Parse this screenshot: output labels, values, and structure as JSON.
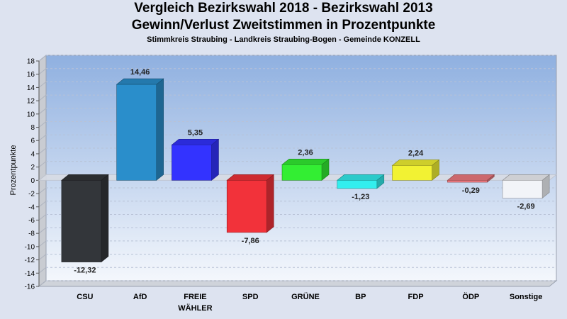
{
  "chart_data": {
    "type": "bar",
    "title_line1": "Vergleich Bezirkswahl 2018 - Bezirkswahl 2013",
    "title_line2": "Gewinn/Verlust Zweitstimmen in Prozentpunkte",
    "subtitle": "Stimmkreis Straubing - Landkreis Straubing-Bogen - Gemeinde KONZELL",
    "ylabel": "Prozentpunkte",
    "ylim": [
      -16,
      18
    ],
    "yticks": [
      18,
      16,
      14,
      12,
      10,
      8,
      6,
      4,
      2,
      0,
      -2,
      -4,
      -6,
      -8,
      -10,
      -12,
      -14,
      -16
    ],
    "categories": [
      {
        "line1": "CSU",
        "line2": ""
      },
      {
        "line1": "AfD",
        "line2": ""
      },
      {
        "line1": "FREIE",
        "line2": "WÄHLER"
      },
      {
        "line1": "SPD",
        "line2": ""
      },
      {
        "line1": "GRÜNE",
        "line2": ""
      },
      {
        "line1": "BP",
        "line2": ""
      },
      {
        "line1": "FDP",
        "line2": ""
      },
      {
        "line1": "ÖDP",
        "line2": ""
      },
      {
        "line1": "Sonstige",
        "line2": ""
      }
    ],
    "values": [
      -12.32,
      14.46,
      5.35,
      -7.86,
      2.36,
      -1.23,
      2.24,
      -0.29,
      -2.69
    ],
    "value_labels": [
      "-12,32",
      "14,46",
      "5,35",
      "-7,86",
      "2,36",
      "-1,23",
      "2,24",
      "-0,29",
      "-2,69"
    ],
    "colors": [
      "#33363a",
      "#2a8ecb",
      "#3333ff",
      "#f2323a",
      "#33ee33",
      "#33eeee",
      "#f2f233",
      "#f07a80",
      "#f2f4f8"
    ],
    "grid": true,
    "legend": "none"
  }
}
